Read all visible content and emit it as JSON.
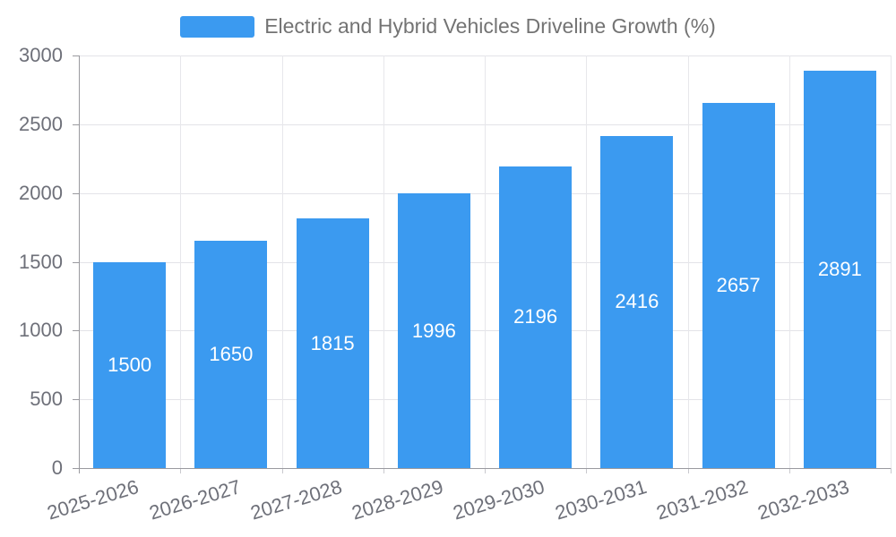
{
  "chart_data": {
    "type": "bar",
    "title": "",
    "xlabel": "",
    "ylabel": "",
    "categories": [
      "2025-2026",
      "2026-2027",
      "2027-2028",
      "2028-2029",
      "2029-2030",
      "2030-2031",
      "2031-2032",
      "2032-2033"
    ],
    "series": [
      {
        "name": "Electric and Hybrid Vehicles Driveline Growth (%)",
        "values": [
          1500,
          1650,
          1815,
          1996,
          2196,
          2416,
          2657,
          2891
        ]
      }
    ],
    "bar_value_labels": [
      "1500",
      "1650",
      "1815",
      "1996",
      "2196",
      "2416",
      "2657",
      "2891"
    ],
    "ylim": [
      0,
      3000
    ],
    "yticks": [
      0,
      500,
      1000,
      1500,
      2000,
      2500,
      3000
    ],
    "grid": true,
    "legend_position": "top-center",
    "x_tick_rotation_deg": -17,
    "colors": {
      "bar": "#3B9AF0",
      "bar_label": "#FFFFFF",
      "axis_text": "#6E7079",
      "legend_text": "#737373",
      "grid": "#E3E3E8",
      "axis_line": "#9A9A9F",
      "background": "#FFFFFF"
    }
  }
}
